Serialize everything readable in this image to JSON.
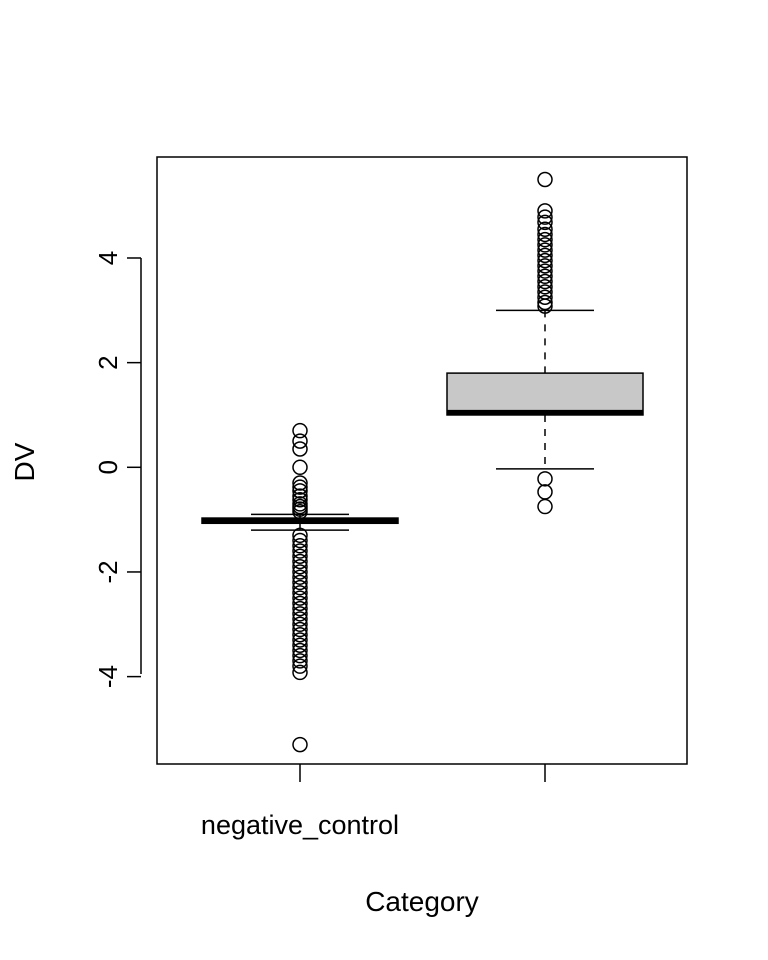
{
  "chart_data": {
    "type": "box",
    "title": "",
    "xlabel": "Category",
    "ylabel": "DV",
    "ylim": [
      -5.6,
      6.0
    ],
    "y_ticks": [
      -4,
      -2,
      0,
      2,
      4
    ],
    "y_tick_labels": [
      "-4",
      "-2",
      "0",
      "2",
      "4"
    ],
    "grid": false,
    "legend": "none",
    "categories": [
      "negative_control",
      ""
    ],
    "boxes": [
      {
        "category": "negative_control",
        "whisker_low": -1.2,
        "q1": -1.07,
        "median": -1.02,
        "q3": -0.97,
        "whisker_high": -0.9,
        "fill": "#ffffff",
        "outliers": [
          0.7,
          0.5,
          0.35,
          0.0,
          -0.3,
          -0.38,
          -0.45,
          -0.55,
          -0.62,
          -0.7,
          -0.75,
          -0.8,
          -0.85,
          -1.3,
          -1.4,
          -1.5,
          -1.6,
          -1.7,
          -1.8,
          -1.9,
          -2.0,
          -2.1,
          -2.2,
          -2.3,
          -2.4,
          -2.5,
          -2.6,
          -2.7,
          -2.8,
          -2.9,
          -3.0,
          -3.1,
          -3.2,
          -3.3,
          -3.4,
          -3.5,
          -3.6,
          -3.7,
          -3.8,
          -3.92,
          -5.3
        ]
      },
      {
        "category": "",
        "whisker_low": -0.03,
        "q1": 1.0,
        "median": 1.05,
        "q3": 1.8,
        "whisker_high": 3.0,
        "fill": "#c8c8c8",
        "outliers": [
          5.5,
          4.9,
          4.78,
          4.68,
          4.55,
          4.45,
          4.35,
          4.25,
          4.15,
          4.05,
          3.95,
          3.85,
          3.75,
          3.65,
          3.55,
          3.45,
          3.35,
          3.25,
          3.15,
          3.08,
          -0.22,
          -0.47,
          -0.75
        ]
      }
    ]
  }
}
